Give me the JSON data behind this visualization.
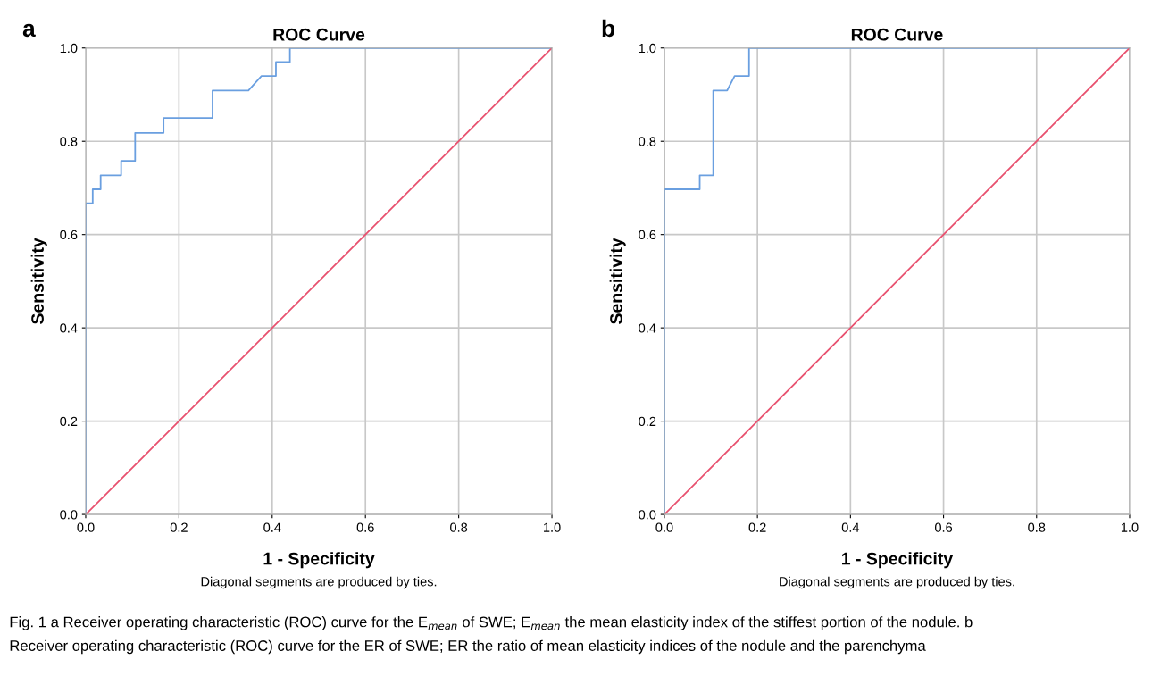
{
  "chart_data": [
    {
      "type": "line",
      "title": "ROC Curve",
      "xlabel": "1 - Specificity",
      "ylabel": "Sensitivity",
      "annotations": [
        "a",
        "Diagonal segments are produced by ties."
      ],
      "series": [
        {
          "color": "#6a9fe0",
          "x": [
            0,
            0,
            0.015,
            0.015,
            0.032,
            0.032,
            0.076,
            0.076,
            0.106,
            0.106,
            0.167,
            0.167,
            0.272,
            0.272,
            0.349,
            0.377,
            0.408,
            0.408,
            0.438,
            0.438,
            1.0
          ],
          "values": [
            0,
            0.667,
            0.667,
            0.697,
            0.697,
            0.727,
            0.727,
            0.758,
            0.758,
            0.818,
            0.818,
            0.85,
            0.85,
            0.909,
            0.909,
            0.94,
            0.94,
            0.97,
            0.97,
            1.0,
            1.0
          ]
        },
        {
          "color": "#e8506e",
          "x": [
            0,
            1
          ],
          "values": [
            0,
            1
          ]
        }
      ],
      "xlim": [
        0,
        1
      ],
      "ylim": [
        0,
        1
      ],
      "xticks": [
        {
          "value": 0,
          "label": "0.0"
        },
        {
          "value": 0.2,
          "label": "0.2"
        },
        {
          "value": 0.4,
          "label": "0.4"
        },
        {
          "value": 0.6,
          "label": "0.6"
        },
        {
          "value": 0.8,
          "label": "0.8"
        },
        {
          "value": 1.0,
          "label": "1.0"
        }
      ],
      "yticks": [
        {
          "value": 0,
          "label": "0.0"
        },
        {
          "value": 0.2,
          "label": "0.2"
        },
        {
          "value": 0.4,
          "label": "0.4"
        },
        {
          "value": 0.6,
          "label": "0.6"
        },
        {
          "value": 0.8,
          "label": "0.8"
        },
        {
          "value": 1.0,
          "label": "1.0"
        }
      ],
      "grid": true,
      "line_style": "solid"
    },
    {
      "type": "line",
      "title": "ROC Curve",
      "xlabel": "1 - Specificity",
      "ylabel": "Sensitivity",
      "annotations": [
        "b",
        "Diagonal segments are produced by ties.",
        "Fig. 1 a Receiver operating characteristic (ROC) curve for the E$_{mean}$ of SWE; E$_{mean}$ the mean elasticity index of the stiffest portion of the nodule. b",
        "Receiver operating characteristic (ROC) curve for the ER of SWE; ER the ratio of mean elasticity indices of the nodule and the parenchyma"
      ],
      "series": [
        {
          "color": "#6a9fe0",
          "x": [
            0,
            0,
            0.076,
            0.076,
            0.105,
            0.105,
            0.135,
            0.151,
            0.182,
            0.182,
            1.0
          ],
          "values": [
            0,
            0.697,
            0.697,
            0.727,
            0.727,
            0.909,
            0.909,
            0.94,
            0.94,
            1.0,
            1.0
          ]
        },
        {
          "color": "#e8506e",
          "x": [
            0,
            1
          ],
          "values": [
            0,
            1
          ]
        }
      ],
      "xlim": [
        0,
        1
      ],
      "ylim": [
        0,
        1
      ],
      "xticks": [
        {
          "value": 0,
          "label": "0.0"
        },
        {
          "value": 0.2,
          "label": "0.2"
        },
        {
          "value": 0.4,
          "label": "0.4"
        },
        {
          "value": 0.6,
          "label": "0.6"
        },
        {
          "value": 0.8,
          "label": "0.8"
        },
        {
          "value": 1.0,
          "label": "1.0"
        }
      ],
      "yticks": [
        {
          "value": 0,
          "label": "0.0"
        },
        {
          "value": 0.2,
          "label": "0.2"
        },
        {
          "value": 0.4,
          "label": "0.4"
        },
        {
          "value": 0.6,
          "label": "0.6"
        },
        {
          "value": 0.8,
          "label": "0.8"
        },
        {
          "value": 1.0,
          "label": "1.0"
        }
      ],
      "grid": true,
      "line_style": "solid"
    }
  ]
}
